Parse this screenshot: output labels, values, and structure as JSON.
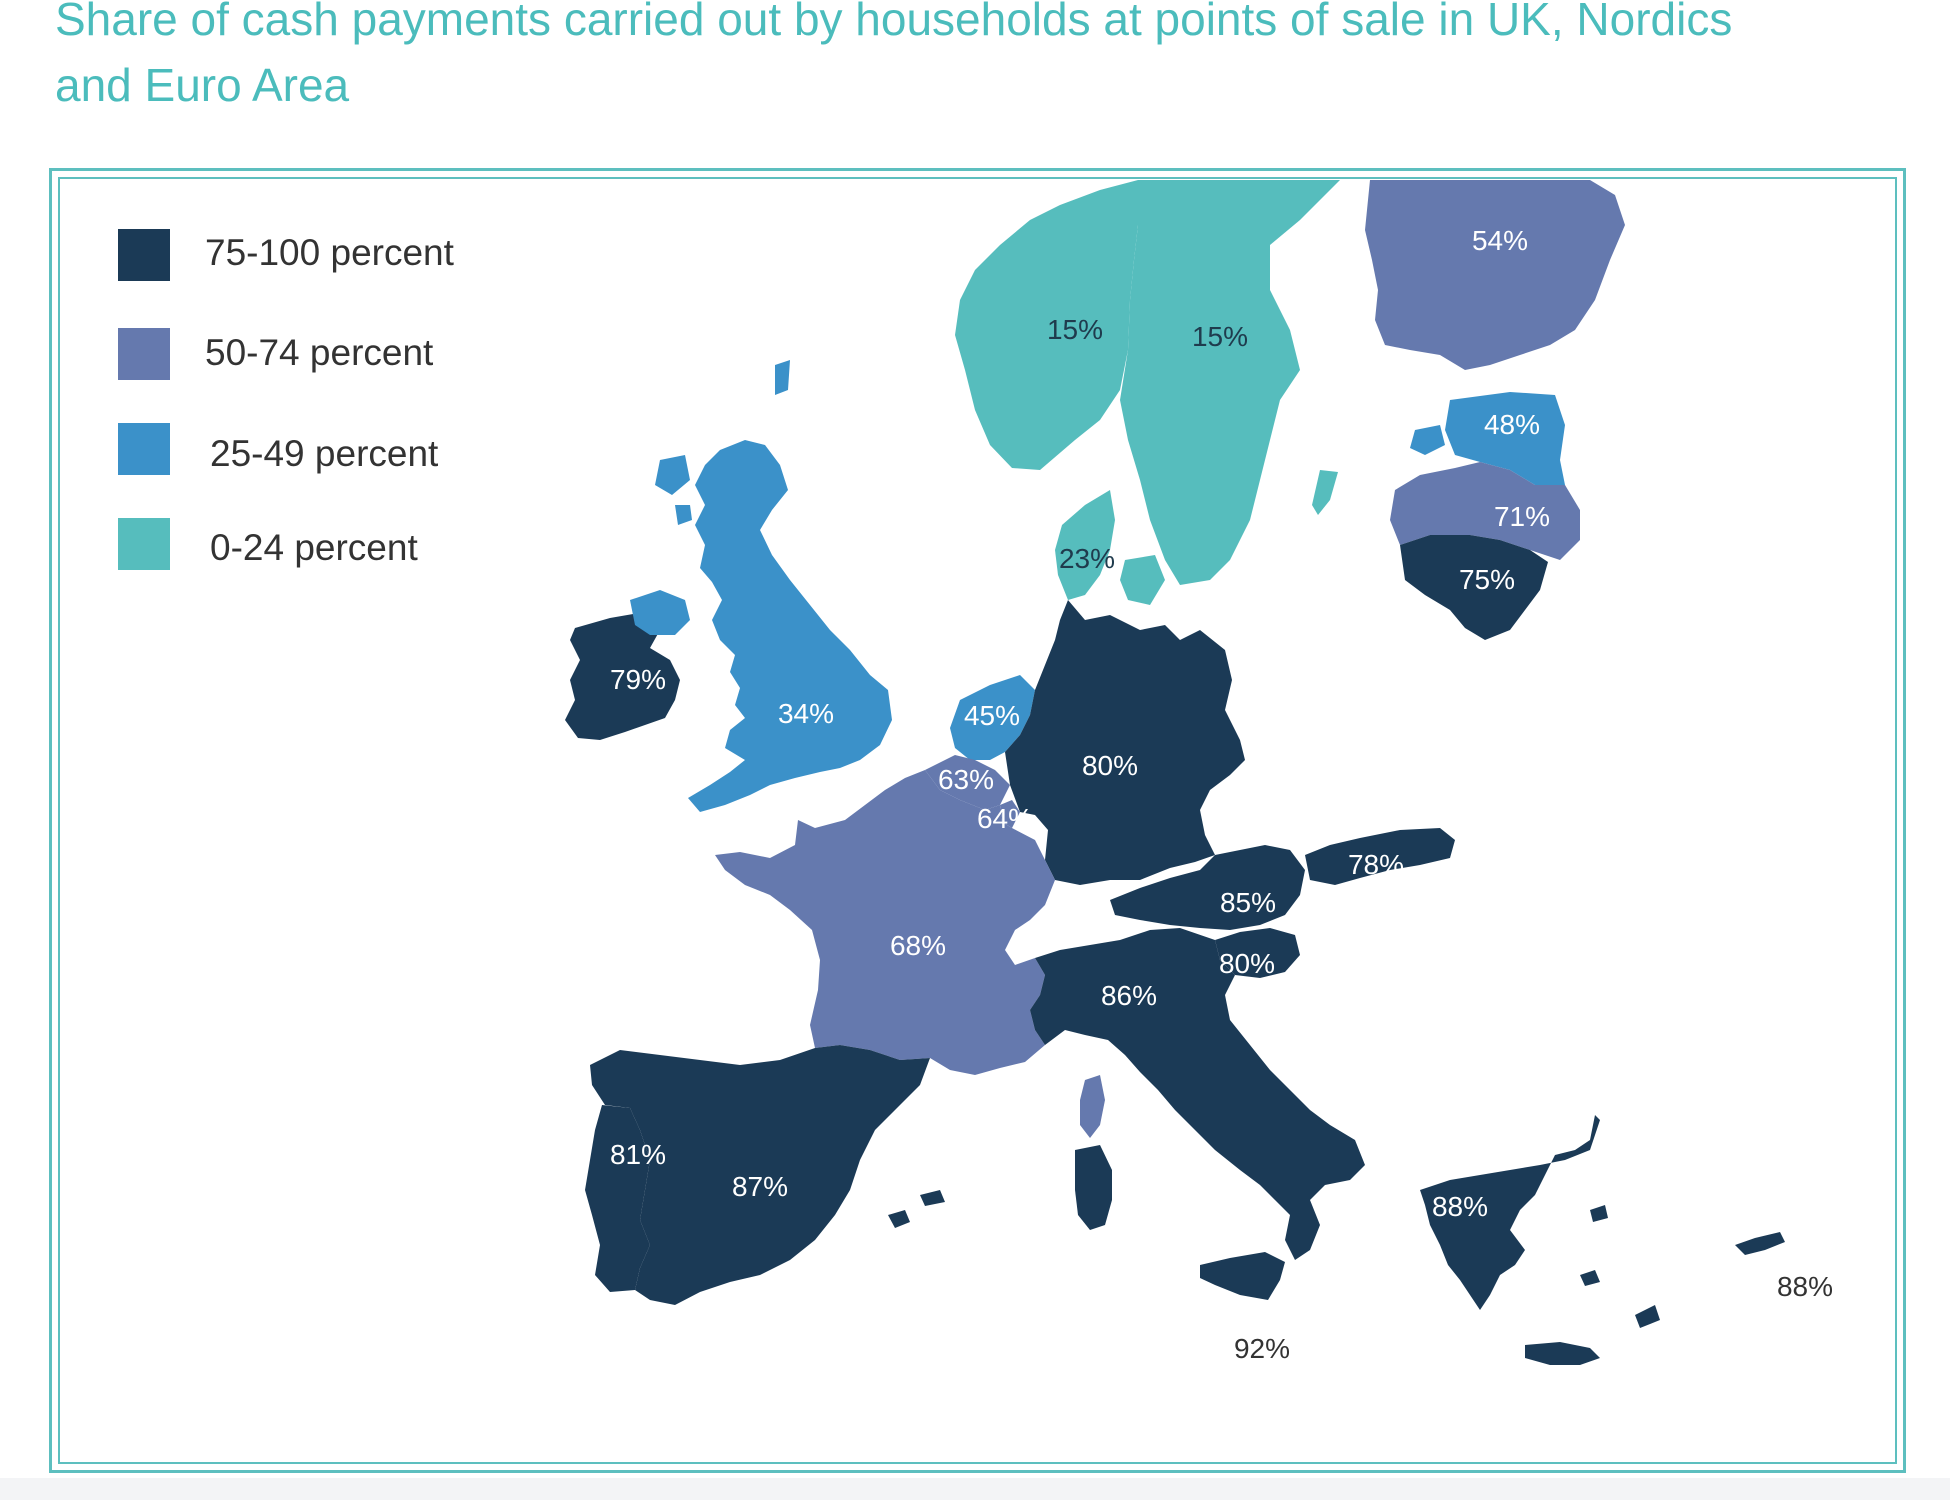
{
  "title": "Share of cash payments carried out by households at points of sale in UK, Nordics and Euro Area",
  "colors": {
    "band_75_100": "#1b3a56",
    "band_50_74": "#6579ae",
    "band_25_49": "#3b91c9",
    "band_0_24": "#56bdbd",
    "accent": "#4bbcbc",
    "frame": "#5dbfbf"
  },
  "legend": [
    {
      "label": "75-100 percent",
      "color": "#1b3a56"
    },
    {
      "label": "50-74 percent",
      "color": "#6579ae"
    },
    {
      "label": "25-49 percent",
      "color": "#3b91c9"
    },
    {
      "label": "0-24 percent",
      "color": "#56bdbd"
    }
  ],
  "map_labels": {
    "finland": "54%",
    "norway": "15%",
    "sweden": "15%",
    "estonia": "48%",
    "latvia": "71%",
    "lithuania": "75%",
    "denmark": "23%",
    "ireland": "79%",
    "uk": "34%",
    "netherlands": "45%",
    "belgium": "63%",
    "luxembourg": "64%",
    "germany": "80%",
    "slovakia": "78%",
    "austria": "85%",
    "slovenia": "80%",
    "france": "68%",
    "italy": "86%",
    "portugal": "81%",
    "spain": "87%",
    "greece": "88%",
    "cyprus": "88%",
    "malta": "92%"
  },
  "chart_data": {
    "type": "map",
    "title": "Share of cash payments carried out by households at points of sale in UK, Nordics and Euro Area",
    "legend_placement": "top-left",
    "bands": [
      "75-100 percent",
      "50-74 percent",
      "25-49 percent",
      "0-24 percent"
    ],
    "regions": [
      {
        "value": 54,
        "label": "54%",
        "band": "50-74 percent"
      },
      {
        "value": 15,
        "label": "15%",
        "band": "0-24 percent"
      },
      {
        "value": 15,
        "label": "15%",
        "band": "0-24 percent"
      },
      {
        "value": 48,
        "label": "48%",
        "band": "25-49 percent"
      },
      {
        "value": 71,
        "label": "71%",
        "band": "50-74 percent"
      },
      {
        "value": 75,
        "label": "75%",
        "band": "75-100 percent"
      },
      {
        "value": 23,
        "label": "23%",
        "band": "0-24 percent"
      },
      {
        "value": 79,
        "label": "79%",
        "band": "75-100 percent"
      },
      {
        "value": 34,
        "label": "34%",
        "band": "25-49 percent"
      },
      {
        "value": 45,
        "label": "45%",
        "band": "25-49 percent"
      },
      {
        "value": 63,
        "label": "63%",
        "band": "50-74 percent"
      },
      {
        "value": 64,
        "label": "64%",
        "band": "50-74 percent"
      },
      {
        "value": 80,
        "label": "80%",
        "band": "75-100 percent"
      },
      {
        "value": 78,
        "label": "78%",
        "band": "75-100 percent"
      },
      {
        "value": 85,
        "label": "85%",
        "band": "75-100 percent"
      },
      {
        "value": 80,
        "label": "80%",
        "band": "75-100 percent"
      },
      {
        "value": 68,
        "label": "68%",
        "band": "50-74 percent"
      },
      {
        "value": 86,
        "label": "86%",
        "band": "75-100 percent"
      },
      {
        "value": 81,
        "label": "81%",
        "band": "75-100 percent"
      },
      {
        "value": 87,
        "label": "87%",
        "band": "75-100 percent"
      },
      {
        "value": 88,
        "label": "88%",
        "band": "75-100 percent"
      },
      {
        "value": 88,
        "label": "88%",
        "band": "75-100 percent"
      },
      {
        "value": 92,
        "label": "92%",
        "band": "75-100 percent"
      }
    ]
  }
}
